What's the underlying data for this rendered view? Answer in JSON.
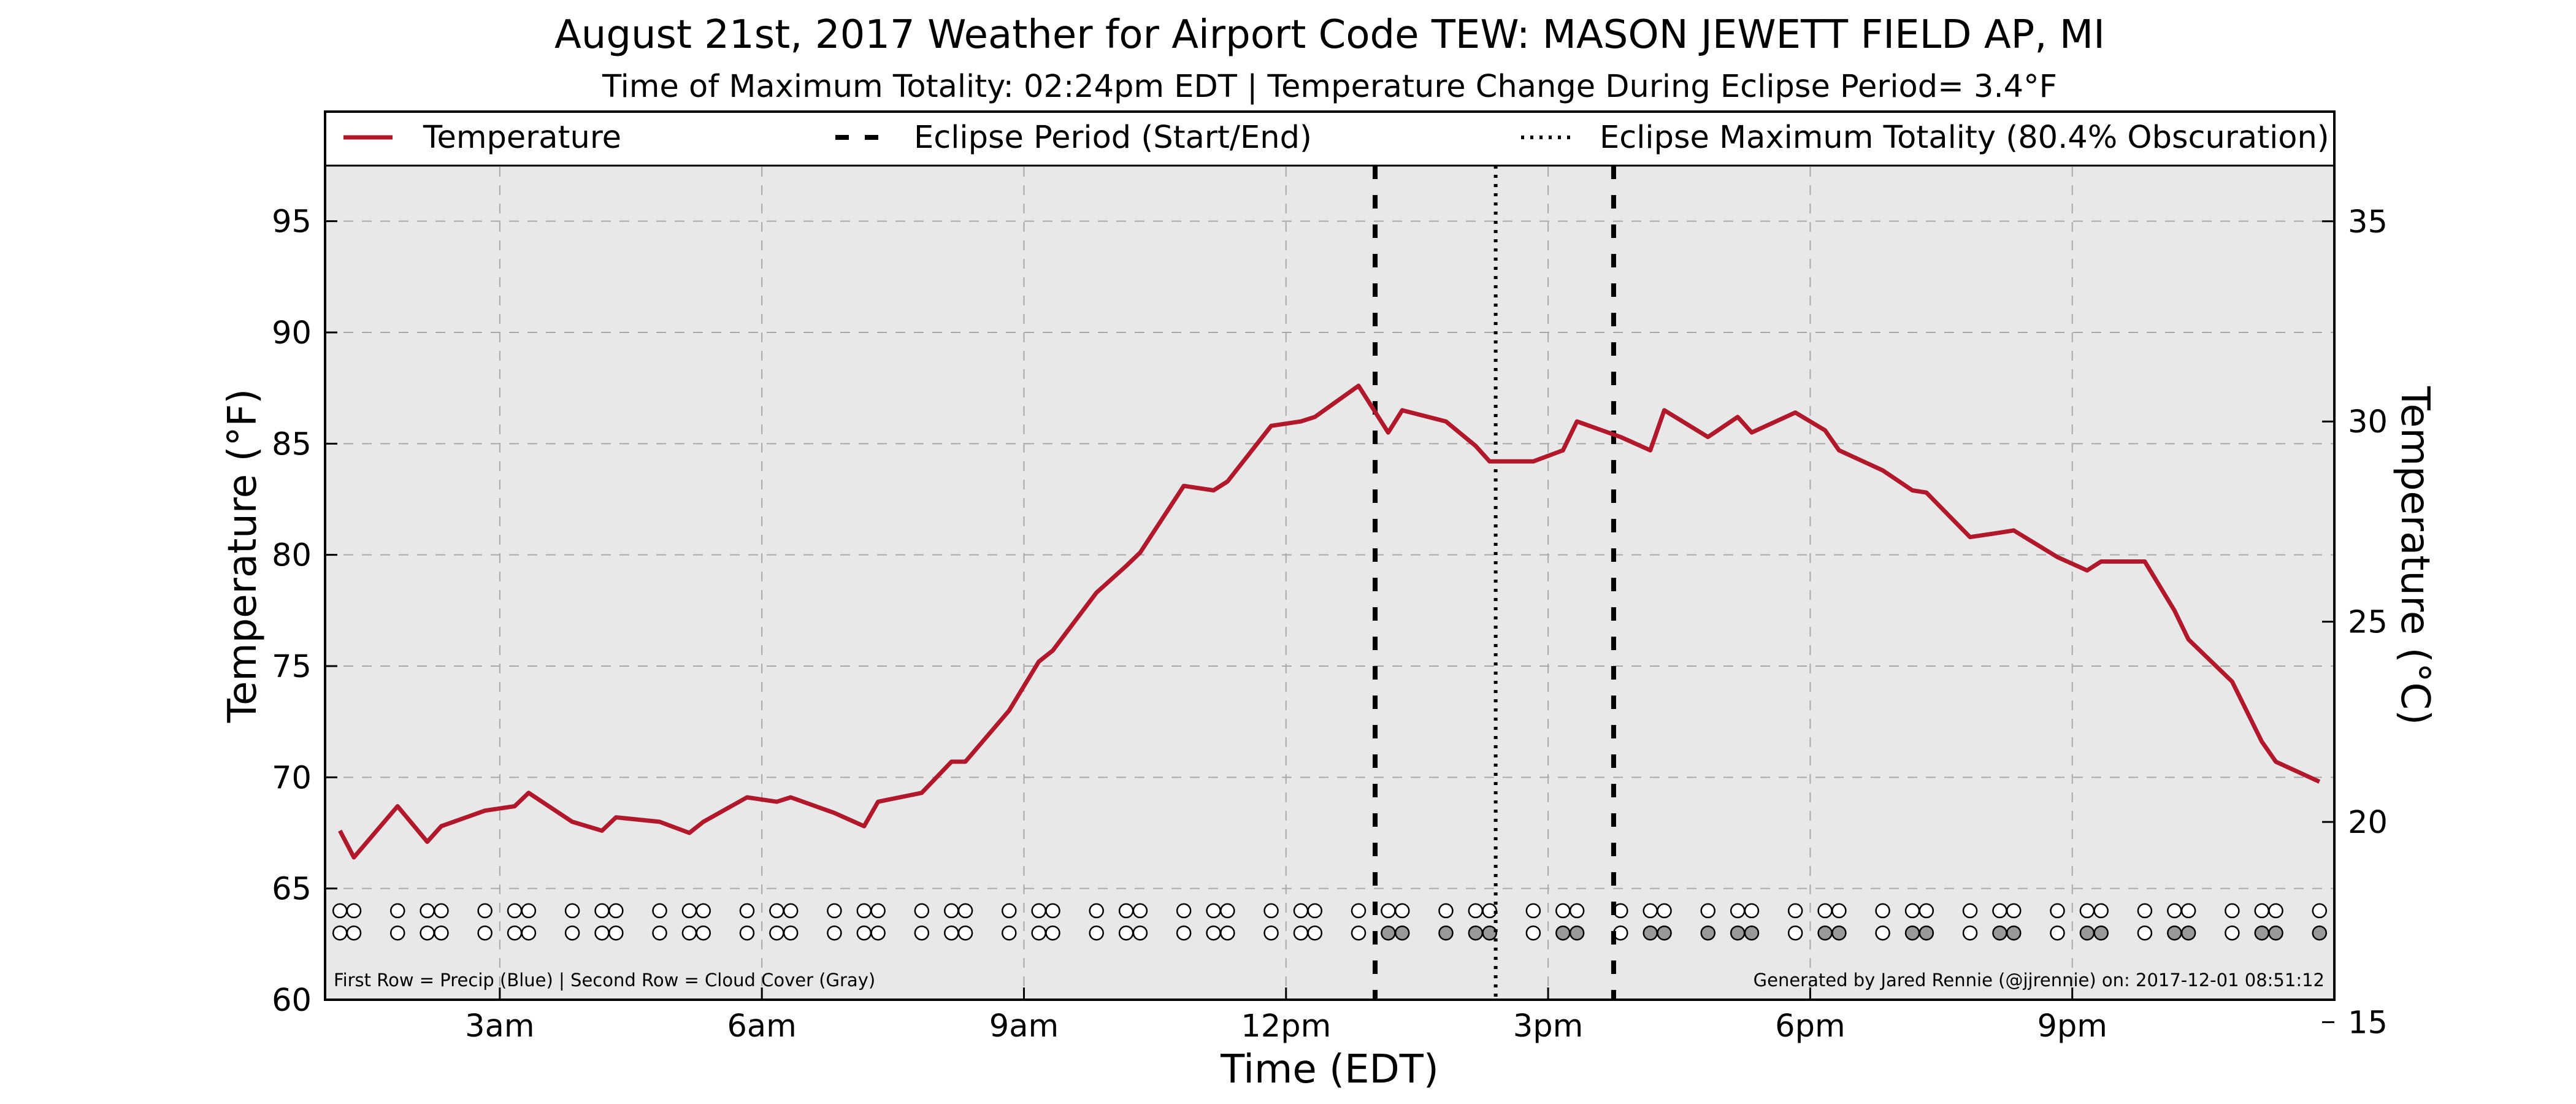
{
  "chart_data": {
    "type": "line",
    "title": "August 21st, 2017 Weather for Airport Code TEW: MASON JEWETT FIELD AP, MI",
    "subtitle": "Time of Maximum Totality: 02:24pm EDT | Temperature Change During Eclipse Period= 3.4°F",
    "xlabel": "Time (EDT)",
    "ylabel": "Temperature (°F)",
    "ylabel_right": "Temperature (°C)",
    "xlim": [
      1,
      24
    ],
    "ylim": [
      60,
      97.5
    ],
    "ylim_right": [
      15.56,
      36.39
    ],
    "xticks": [
      {
        "value": 3,
        "label": "3am"
      },
      {
        "value": 6,
        "label": "6am"
      },
      {
        "value": 9,
        "label": "9am"
      },
      {
        "value": 12,
        "label": "12pm"
      },
      {
        "value": 15,
        "label": "3pm"
      },
      {
        "value": 18,
        "label": "6pm"
      },
      {
        "value": 21,
        "label": "9pm"
      }
    ],
    "yticks": [
      60,
      65,
      70,
      75,
      80,
      85,
      90,
      95
    ],
    "yticks_right": [
      15,
      20,
      25,
      30,
      35
    ],
    "grid": true,
    "legend": {
      "placement": "top",
      "entries": [
        {
          "label": "Temperature",
          "style": "solid"
        },
        {
          "label": "Eclipse Period (Start/End)",
          "style": "dashed"
        },
        {
          "label": "Eclipse Maximum Totality (80.4% Obscuration)",
          "style": "dotted"
        }
      ]
    },
    "colors": {
      "temperature": "#b2182b",
      "background": "#e8e8e8",
      "cloud_gray": "#999999"
    },
    "eclipse": {
      "start": 13.02,
      "max": 14.4,
      "end": 15.75
    },
    "series": [
      {
        "name": "Temperature",
        "x": [
          1.17,
          1.33,
          1.83,
          2.17,
          2.33,
          2.83,
          3.17,
          3.33,
          3.83,
          4.17,
          4.33,
          4.83,
          5.17,
          5.33,
          5.83,
          6.17,
          6.33,
          6.83,
          7.17,
          7.33,
          7.83,
          8.17,
          8.33,
          8.83,
          9.17,
          9.33,
          9.83,
          10.17,
          10.33,
          10.83,
          11.17,
          11.33,
          11.83,
          12.17,
          12.33,
          12.83,
          13.17,
          13.33,
          13.83,
          14.17,
          14.33,
          14.83,
          15.17,
          15.33,
          15.83,
          16.17,
          16.33,
          16.83,
          17.17,
          17.33,
          17.83,
          18.17,
          18.33,
          18.83,
          19.17,
          19.33,
          19.83,
          20.17,
          20.33,
          20.83,
          21.17,
          21.33,
          21.83,
          22.17,
          22.33,
          22.83,
          23.17,
          23.33,
          23.83
        ],
        "y": [
          67.6,
          66.4,
          68.7,
          67.1,
          67.8,
          68.5,
          68.7,
          69.3,
          68.0,
          67.6,
          68.2,
          68.0,
          67.5,
          68.0,
          69.1,
          68.9,
          69.1,
          68.4,
          67.8,
          68.9,
          69.3,
          70.7,
          70.7,
          73.0,
          75.2,
          75.7,
          78.3,
          79.5,
          80.1,
          83.1,
          82.9,
          83.3,
          85.8,
          86.0,
          86.2,
          87.6,
          85.5,
          86.5,
          86.0,
          84.9,
          84.2,
          84.2,
          84.7,
          86.0,
          85.3,
          84.7,
          86.5,
          85.3,
          86.2,
          85.5,
          86.4,
          85.6,
          84.7,
          83.8,
          82.9,
          82.8,
          80.8,
          81.0,
          81.1,
          79.9,
          79.3,
          79.7,
          79.7,
          77.5,
          76.2,
          74.3,
          71.6,
          70.7,
          69.8
        ]
      }
    ],
    "observation_rows": {
      "legend_text": "First Row = Precip (Blue) | Second Row = Cloud Cover (Gray)",
      "x": [
        1.17,
        1.33,
        1.83,
        2.17,
        2.33,
        2.83,
        3.17,
        3.33,
        3.83,
        4.17,
        4.33,
        4.83,
        5.17,
        5.33,
        5.83,
        6.17,
        6.33,
        6.83,
        7.17,
        7.33,
        7.83,
        8.17,
        8.33,
        8.83,
        9.17,
        9.33,
        9.83,
        10.17,
        10.33,
        10.83,
        11.17,
        11.33,
        11.83,
        12.17,
        12.33,
        12.83,
        13.17,
        13.33,
        13.83,
        14.17,
        14.33,
        14.83,
        15.17,
        15.33,
        15.83,
        16.17,
        16.33,
        16.83,
        17.17,
        17.33,
        17.83,
        18.17,
        18.33,
        18.83,
        19.17,
        19.33,
        19.83,
        20.17,
        20.33,
        20.83,
        21.17,
        21.33,
        21.83,
        22.17,
        22.33,
        22.83,
        23.17,
        23.33,
        23.83
      ],
      "precip": [
        0,
        0,
        0,
        0,
        0,
        0,
        0,
        0,
        0,
        0,
        0,
        0,
        0,
        0,
        0,
        0,
        0,
        0,
        0,
        0,
        0,
        0,
        0,
        0,
        0,
        0,
        0,
        0,
        0,
        0,
        0,
        0,
        0,
        0,
        0,
        0,
        0,
        0,
        0,
        0,
        0,
        0,
        0,
        0,
        0,
        0,
        0,
        0,
        0,
        0,
        0,
        0,
        0,
        0,
        0,
        0,
        0,
        0,
        0,
        0,
        0,
        0,
        0,
        0,
        0,
        0,
        0,
        0,
        0
      ],
      "cloud": [
        0,
        0,
        0,
        0,
        0,
        0,
        0,
        0,
        0,
        0,
        0,
        0,
        0,
        0,
        0,
        0,
        0,
        0,
        0,
        0,
        0,
        0,
        0,
        0,
        0,
        0,
        0,
        0,
        0,
        0,
        0,
        0,
        0,
        0,
        0,
        0,
        1,
        1,
        1,
        1,
        1,
        0,
        1,
        1,
        0,
        1,
        1,
        1,
        1,
        1,
        0,
        1,
        1,
        0,
        1,
        1,
        0,
        1,
        1,
        0,
        1,
        1,
        0,
        1,
        1,
        0,
        1,
        1,
        1
      ]
    },
    "credit": "Generated by Jared Rennie (@jjrennie) on: 2017-12-01 08:51:12"
  }
}
